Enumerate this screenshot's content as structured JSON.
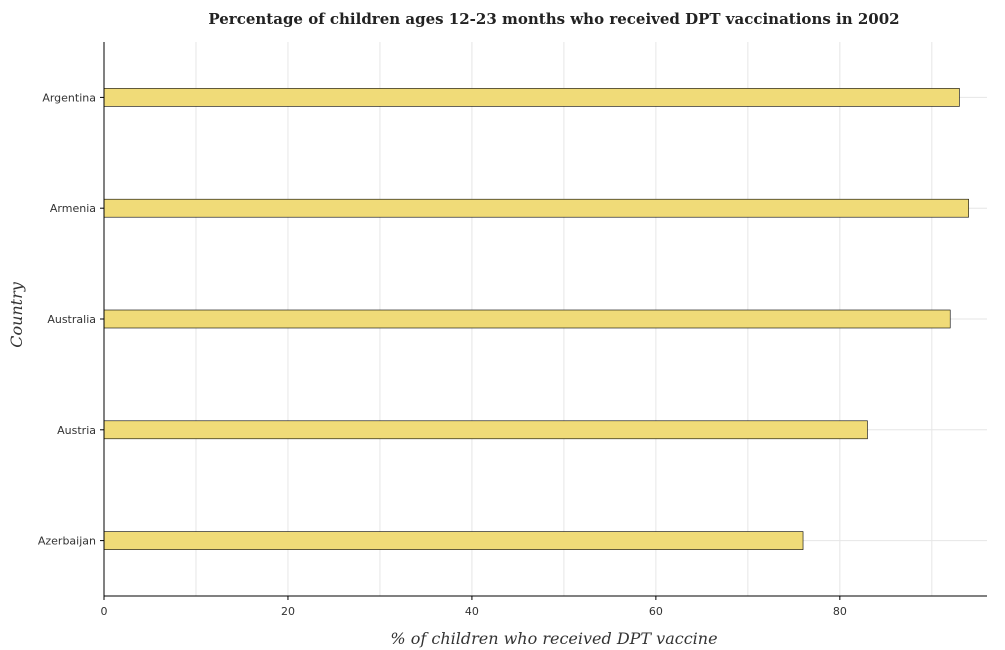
{
  "chart_data": {
    "type": "bar",
    "orientation": "horizontal",
    "title": "Percentage of children ages 12-23 months who received DPT vaccinations in 2002",
    "xlabel": "% of children who received DPT vaccine",
    "ylabel": "Country",
    "categories": [
      "Argentina",
      "Armenia",
      "Australia",
      "Austria",
      "Azerbaijan"
    ],
    "values": [
      93,
      94,
      92,
      83,
      76
    ],
    "xlim": [
      0,
      96
    ],
    "xticks": [
      0,
      20,
      40,
      60,
      80
    ],
    "grid": true,
    "bar_color": "#f0db78"
  }
}
